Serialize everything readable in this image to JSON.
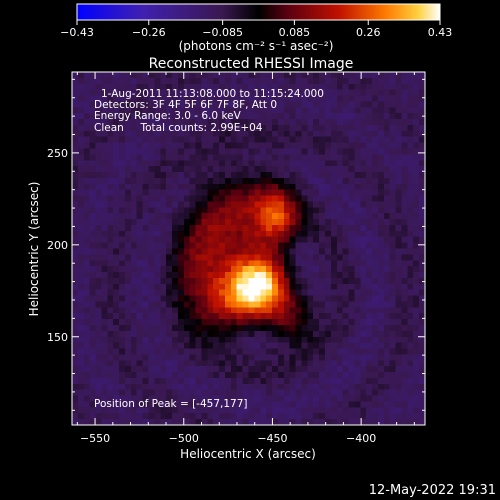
{
  "chart_data": {
    "type": "heatmap",
    "title": "Reconstructed RHESSI Image",
    "xlabel": "Heliocentric X (arcsec)",
    "ylabel": "Heliocentric Y (arcsec)",
    "xlim": [
      -563,
      -364
    ],
    "ylim": [
      102,
      294
    ],
    "xticks": [
      -550,
      -500,
      -450,
      -400
    ],
    "yticks": [
      150,
      200,
      250
    ],
    "colorbar": {
      "min": -0.43,
      "max": 0.43,
      "ticks": [
        "-0.43",
        "-0.26",
        "-0.085",
        "0.085",
        "0.26",
        "0.43"
      ],
      "label": "(photons cm⁻² s⁻¹ asec⁻²)"
    },
    "annotations": [
      "1-Aug-2011 11:13:08.000 to 11:15:24.000",
      "Detectors: 3F 4F 5F 6F 7F 8F, Att 0",
      "Energy Range: 3.0 - 6.0 keV",
      "Clean     Total counts: 2.99E+04"
    ],
    "peak_label": "Position of Peak = [-457,177]",
    "peak": {
      "x": -457,
      "y": 177,
      "value": 0.43
    },
    "sources": [
      {
        "x": -457,
        "y": 177,
        "sx": 10,
        "sy": 10,
        "amp": 0.43
      },
      {
        "x": -448,
        "y": 215,
        "sx": 9,
        "sy": 12,
        "amp": 0.3
      },
      {
        "x": -472,
        "y": 205,
        "sx": 16,
        "sy": 22,
        "amp": 0.22
      },
      {
        "x": -478,
        "y": 168,
        "sx": 12,
        "sy": 12,
        "amp": 0.24
      },
      {
        "x": -440,
        "y": 160,
        "sx": 9,
        "sy": 10,
        "amp": 0.18
      },
      {
        "x": -490,
        "y": 190,
        "sx": 10,
        "sy": 14,
        "amp": 0.12
      }
    ],
    "background": -0.1
  },
  "footer": {
    "timestamp": "12-May-2022 19:31"
  }
}
